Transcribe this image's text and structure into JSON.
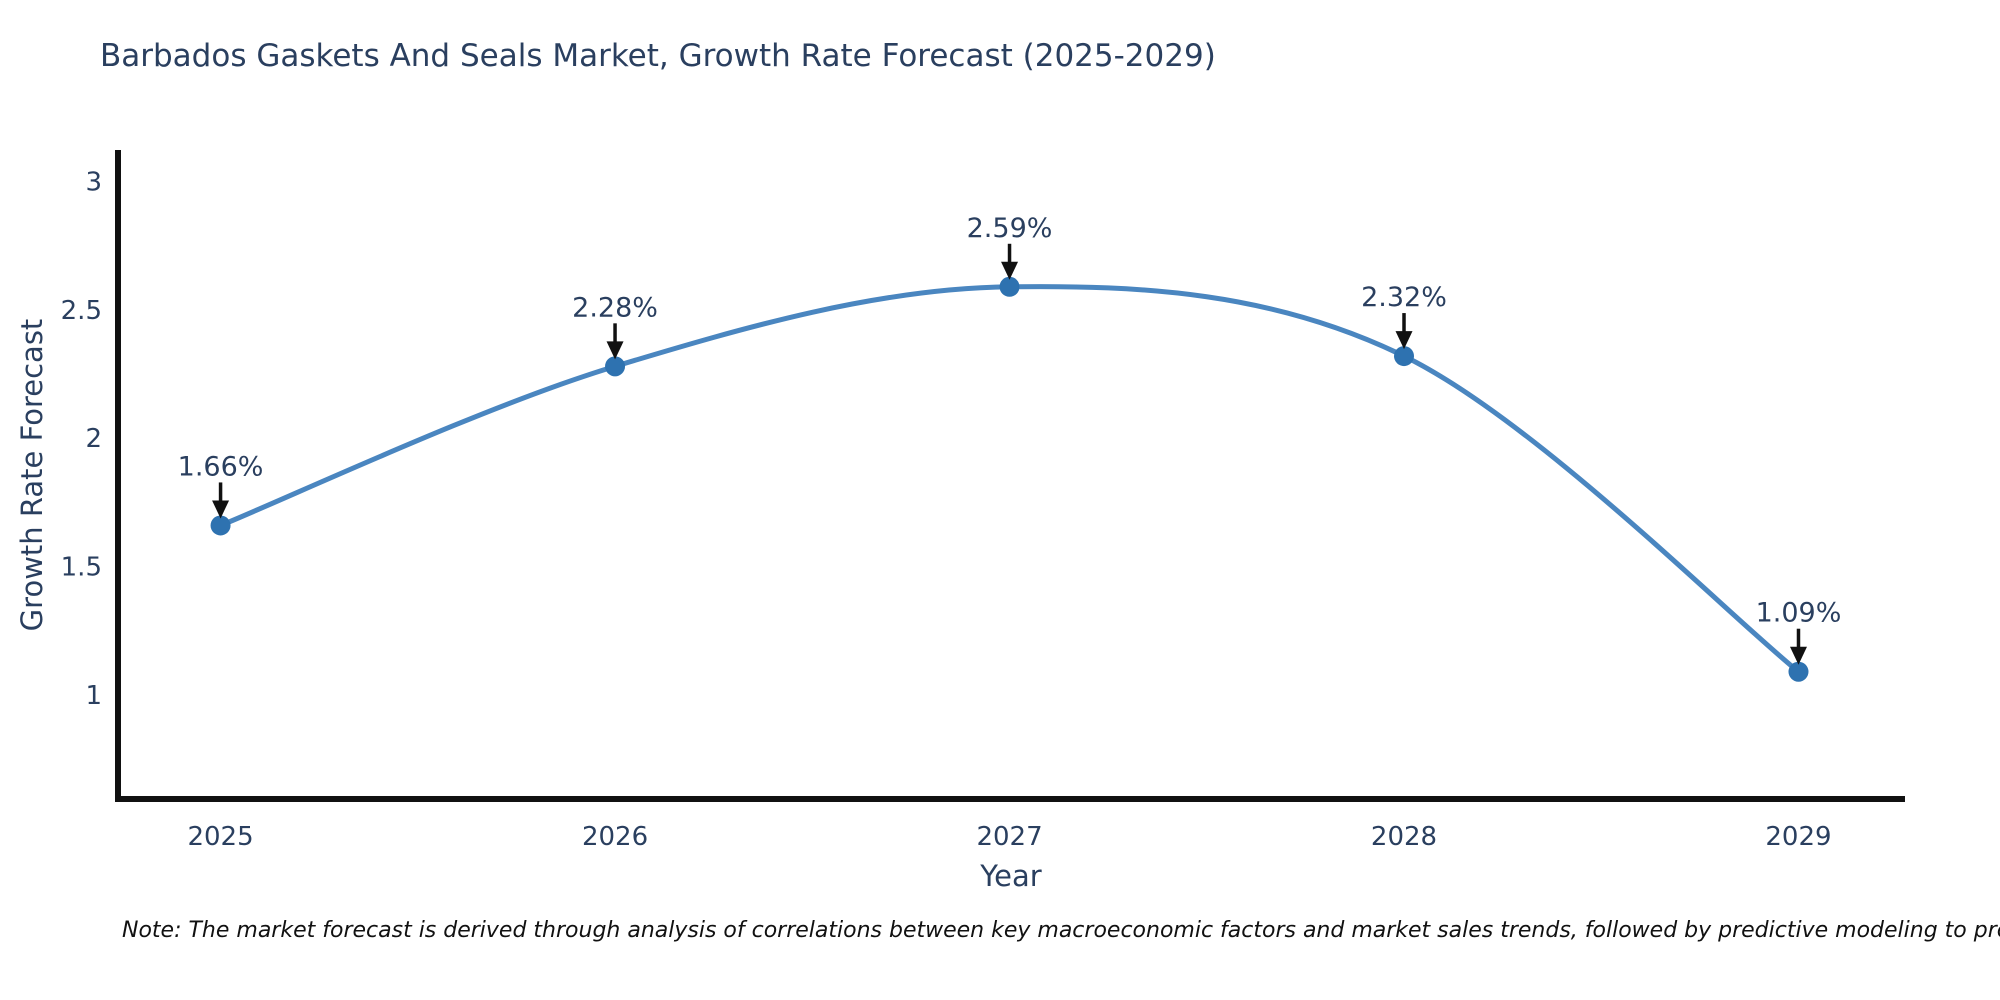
{
  "chart_data": {
    "type": "line",
    "title": "Barbados Gaskets And Seals Market, Growth Rate Forecast (2025-2029)",
    "xlabel": "Year",
    "ylabel": "Growth Rate Forecast",
    "x": [
      2025,
      2026,
      2027,
      2028,
      2029
    ],
    "values": [
      1.66,
      2.28,
      2.59,
      2.32,
      1.09
    ],
    "point_labels": [
      "1.66%",
      "2.28%",
      "2.59%",
      "2.32%",
      "1.09%"
    ],
    "x_tick_labels": [
      "2025",
      "2026",
      "2027",
      "2028",
      "2029"
    ],
    "y_ticks": [
      1,
      1.5,
      2,
      2.5,
      3
    ],
    "y_tick_labels": [
      "1",
      "1.5",
      "2",
      "2.5",
      "3"
    ],
    "xlim": [
      2024.74,
      2029.27
    ],
    "ylim": [
      0.594,
      3.123
    ],
    "grid": false,
    "legend": false,
    "line_shape": "spline",
    "annotation_style": "down-arrow",
    "colors": {
      "line": "#4a86c0",
      "marker": "#2e72b0",
      "axis": "#111111",
      "text": "#2a3f5f",
      "arrow": "#111111",
      "background": "#ffffff"
    }
  },
  "note": "Note: The market forecast is derived through analysis of correlations between key macroeconomic factors and market sales trends, followed by predictive modeling to project future sales"
}
